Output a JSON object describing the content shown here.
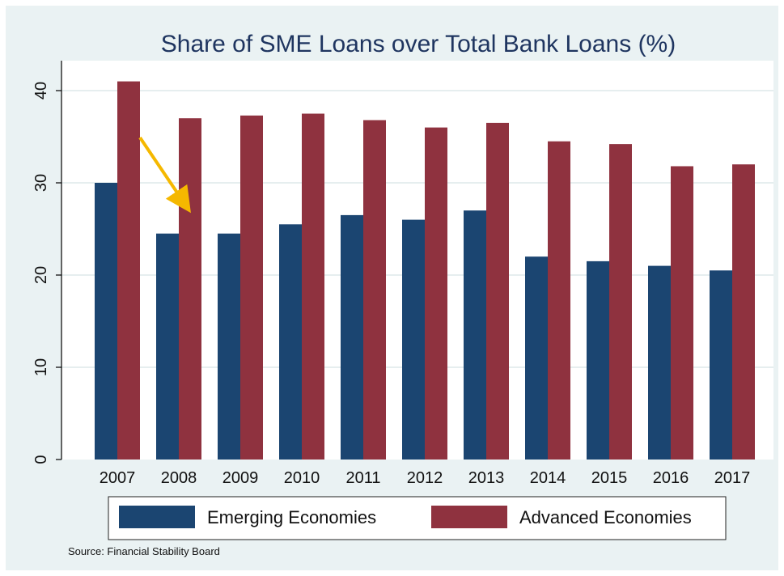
{
  "chart_data": {
    "type": "bar",
    "title": "Share of SME Loans over Total Bank Loans (%)",
    "categories": [
      "2007",
      "2008",
      "2009",
      "2010",
      "2011",
      "2012",
      "2013",
      "2014",
      "2015",
      "2016",
      "2017"
    ],
    "series": [
      {
        "name": "Emerging Economies",
        "color": "#1b4571",
        "values": [
          30,
          24.5,
          24.5,
          25.5,
          26.5,
          26,
          27,
          22,
          21.5,
          21,
          20.5
        ]
      },
      {
        "name": "Advanced Economies",
        "color": "#8f323f",
        "values": [
          41,
          37,
          37.3,
          37.5,
          36.8,
          36,
          36.5,
          34.5,
          34.2,
          31.8,
          32
        ]
      }
    ],
    "yticks": [
      "0",
      "10",
      "20",
      "30",
      "40"
    ],
    "ylim": [
      0,
      40
    ],
    "grid": true,
    "legend_position": "bottom",
    "annotation": {
      "type": "arrow",
      "color": "#f5b800",
      "target_category": "2008"
    },
    "source": "Source: Financial Stability Board"
  },
  "colors": {
    "background": "#eaf2f3",
    "plot_area": "#ffffff",
    "title": "#1f3560",
    "gridline": "#e6eeef"
  }
}
